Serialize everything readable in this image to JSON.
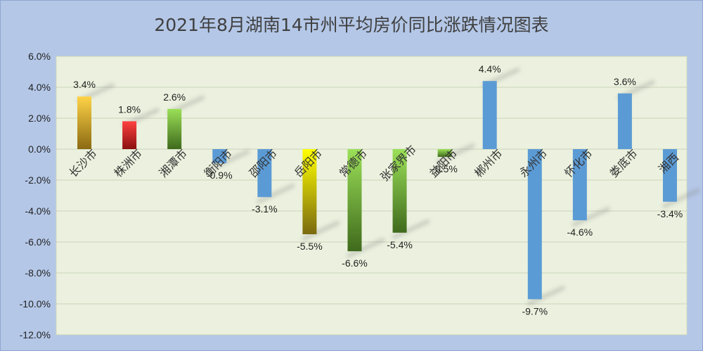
{
  "title": "2021年8月湖南14市州平均房价同比涨跌情况图表",
  "colors": {
    "background": "#b4c7e7",
    "plot_area": "#ebf1de",
    "blue_bar": "#5b9bd5"
  },
  "chart_data": {
    "type": "bar",
    "title": "2021年8月湖南14市州平均房价同比涨跌情况图表",
    "xlabel": "",
    "ylabel": "",
    "ylim": [
      -12,
      6
    ],
    "ytick_step": 2,
    "y_unit": "%",
    "grid": true,
    "legend": "none",
    "categories": [
      "长沙市",
      "株洲市",
      "湘潭市",
      "衡阳市",
      "邵阳市",
      "岳阳市",
      "常德市",
      "张家界市",
      "益阳市",
      "郴州市",
      "永州市",
      "怀化市",
      "娄底市",
      "湘西"
    ],
    "values": [
      3.4,
      1.8,
      2.6,
      -0.9,
      -3.1,
      -5.5,
      -6.6,
      -5.4,
      -0.5,
      4.4,
      -9.7,
      -4.6,
      3.6,
      -3.4
    ],
    "data_labels": [
      "3.4%",
      "1.8%",
      "2.6%",
      "-0.9%",
      "-3.1%",
      "-5.5%",
      "-6.6%",
      "-5.4%",
      "-0.5%",
      "4.4%",
      "-9.7%",
      "-4.6%",
      "3.6%",
      "-3.4%"
    ],
    "bar_fill": [
      "gold",
      "red",
      "green",
      "blue",
      "blue",
      "yellow",
      "green",
      "green",
      "green",
      "blue",
      "blue",
      "blue",
      "blue",
      "blue"
    ]
  }
}
